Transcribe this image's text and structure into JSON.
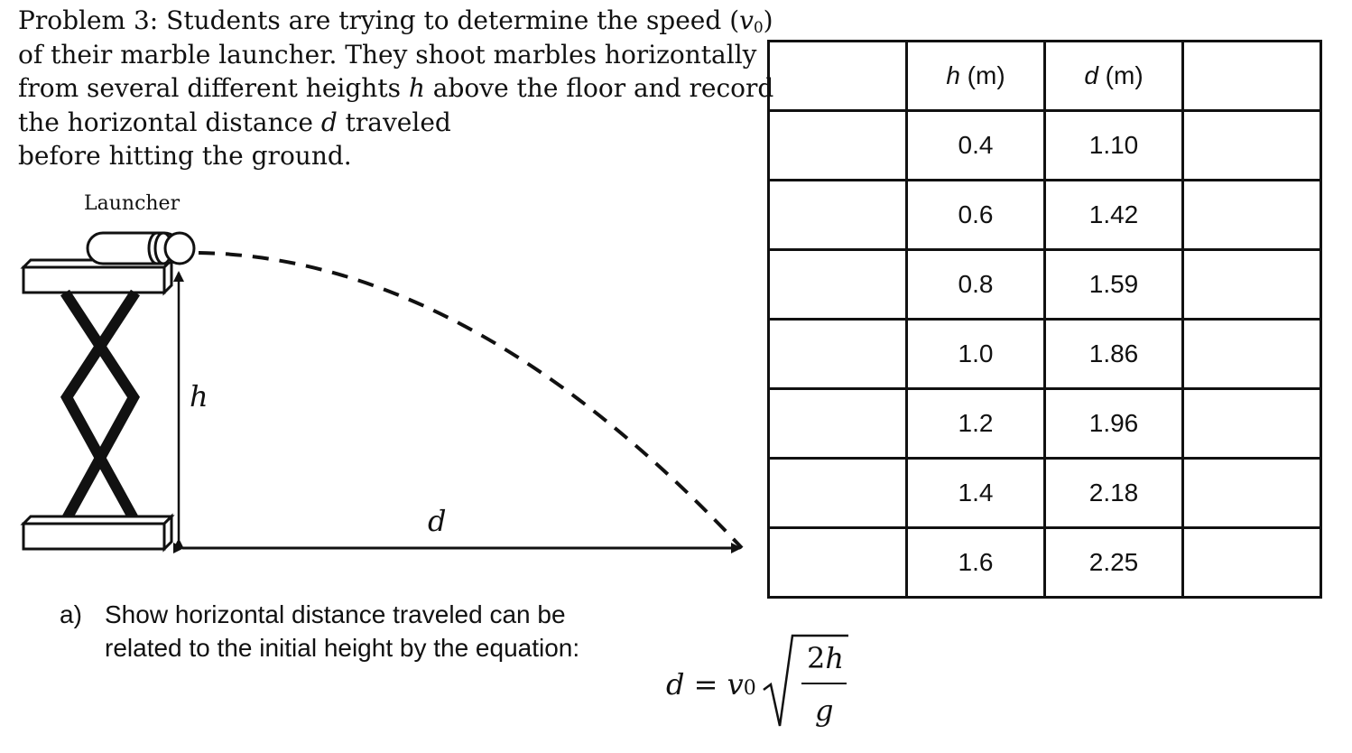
{
  "problem": {
    "line1_before": "Problem 3: Students are trying to determine the speed (",
    "line1_v": "v",
    "line1_sub": "0",
    "line1_after": ")",
    "line2": "of their marble launcher. They shoot marbles horizontally",
    "line3_before": "from several different heights ",
    "line3_var": "h",
    "line3_after": " above the floor and record",
    "line4_before": "the horizontal distance ",
    "line4_var": "d",
    "line4_after": " traveled",
    "line5": "before hitting the ground."
  },
  "diagram": {
    "launcher_label": "Launcher",
    "height_label": "h",
    "distance_label": "d"
  },
  "table": {
    "header_h_var": "h",
    "header_h_unit": " (m)",
    "header_d_var": "d",
    "header_d_unit": " (m)",
    "rows": [
      {
        "h": "0.4",
        "d": "1.10"
      },
      {
        "h": "0.6",
        "d": "1.42"
      },
      {
        "h": "0.8",
        "d": "1.59"
      },
      {
        "h": "1.0",
        "d": "1.86"
      },
      {
        "h": "1.2",
        "d": "1.96"
      },
      {
        "h": "1.4",
        "d": "2.18"
      },
      {
        "h": "1.6",
        "d": "2.25"
      }
    ]
  },
  "part_a": {
    "label": "a)",
    "line1": "Show horizontal distance traveled can be",
    "line2": "related to the initial height by the equation:"
  },
  "equation": {
    "lhs_var": "d",
    "equals": " = ",
    "coef": "v",
    "coef_sub": "0",
    "numerator_coef": "2",
    "numerator_var": "h",
    "denominator_var": "g"
  }
}
